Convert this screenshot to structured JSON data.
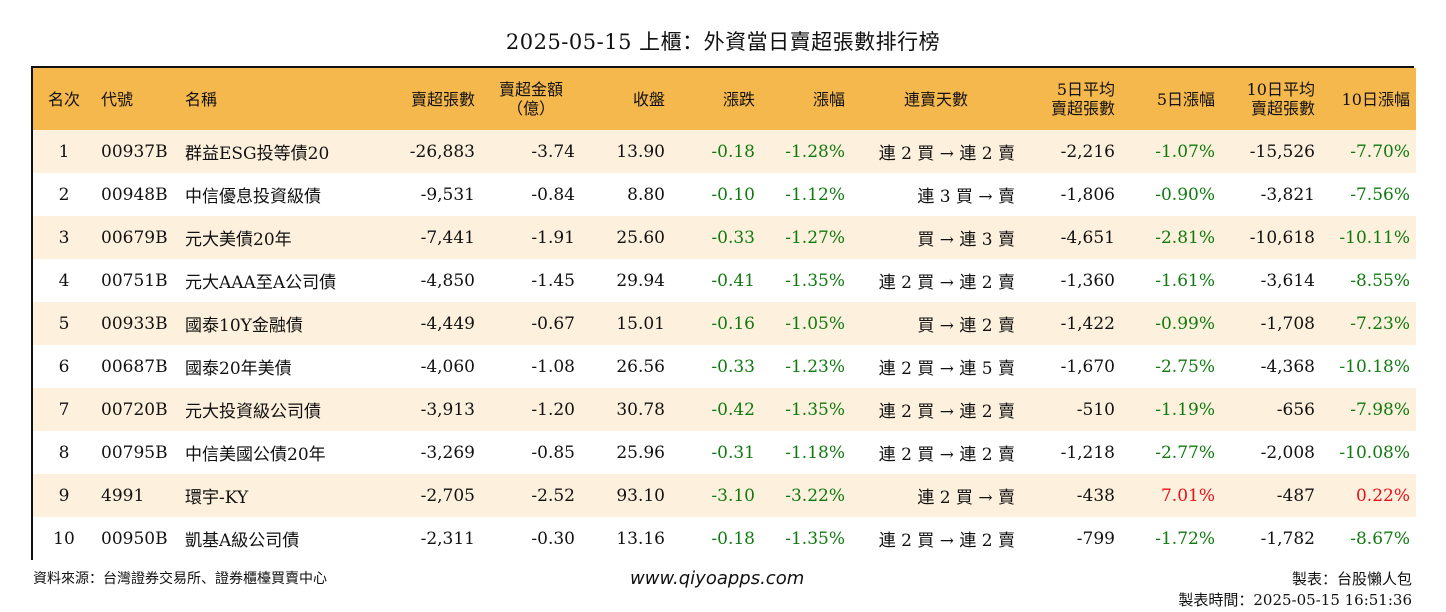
{
  "title": "2025-05-15 上櫃：外資當日賣超張數排行榜",
  "headers": {
    "rank": "名次",
    "code": "代號",
    "name": "名稱",
    "sell_lots": "賣超張數",
    "sell_amount_1": "賣超金額",
    "sell_amount_2": "（億）",
    "close": "收盤",
    "change": "漲跌",
    "change_pct": "漲幅",
    "streak": "連賣天數",
    "avg5_1": "5日平均",
    "avg5_2": "賣超張數",
    "pct5": "5日漲幅",
    "avg10_1": "10日平均",
    "avg10_2": "賣超張數",
    "pct10": "10日漲幅"
  },
  "rows": [
    {
      "rank": "1",
      "code": "00937B",
      "name": "群益ESG投等債20",
      "sell": "-26,883",
      "amount": "-3.74",
      "close": "13.90",
      "chg": "-0.18",
      "chg_pct": "-1.28%",
      "streak": "連 2 買 → 連 2 賣",
      "avg5": "-2,216",
      "pct5": "-1.07%",
      "avg10": "-15,526",
      "pct10": "-7.70%"
    },
    {
      "rank": "2",
      "code": "00948B",
      "name": "中信優息投資級債",
      "sell": "-9,531",
      "amount": "-0.84",
      "close": "8.80",
      "chg": "-0.10",
      "chg_pct": "-1.12%",
      "streak": "連 3 買 → 賣",
      "avg5": "-1,806",
      "pct5": "-0.90%",
      "avg10": "-3,821",
      "pct10": "-7.56%"
    },
    {
      "rank": "3",
      "code": "00679B",
      "name": "元大美債20年",
      "sell": "-7,441",
      "amount": "-1.91",
      "close": "25.60",
      "chg": "-0.33",
      "chg_pct": "-1.27%",
      "streak": "買 → 連 3 賣",
      "avg5": "-4,651",
      "pct5": "-2.81%",
      "avg10": "-10,618",
      "pct10": "-10.11%"
    },
    {
      "rank": "4",
      "code": "00751B",
      "name": "元大AAA至A公司債",
      "sell": "-4,850",
      "amount": "-1.45",
      "close": "29.94",
      "chg": "-0.41",
      "chg_pct": "-1.35%",
      "streak": "連 2 買 → 連 2 賣",
      "avg5": "-1,360",
      "pct5": "-1.61%",
      "avg10": "-3,614",
      "pct10": "-8.55%"
    },
    {
      "rank": "5",
      "code": "00933B",
      "name": "國泰10Y金融債",
      "sell": "-4,449",
      "amount": "-0.67",
      "close": "15.01",
      "chg": "-0.16",
      "chg_pct": "-1.05%",
      "streak": "買 → 連 2 賣",
      "avg5": "-1,422",
      "pct5": "-0.99%",
      "avg10": "-1,708",
      "pct10": "-7.23%"
    },
    {
      "rank": "6",
      "code": "00687B",
      "name": "國泰20年美債",
      "sell": "-4,060",
      "amount": "-1.08",
      "close": "26.56",
      "chg": "-0.33",
      "chg_pct": "-1.23%",
      "streak": "連 2 買 → 連 5 賣",
      "avg5": "-1,670",
      "pct5": "-2.75%",
      "avg10": "-4,368",
      "pct10": "-10.18%"
    },
    {
      "rank": "7",
      "code": "00720B",
      "name": "元大投資級公司債",
      "sell": "-3,913",
      "amount": "-1.20",
      "close": "30.78",
      "chg": "-0.42",
      "chg_pct": "-1.35%",
      "streak": "連 2 買 → 連 2 賣",
      "avg5": "-510",
      "pct5": "-1.19%",
      "avg10": "-656",
      "pct10": "-7.98%"
    },
    {
      "rank": "8",
      "code": "00795B",
      "name": "中信美國公債20年",
      "sell": "-3,269",
      "amount": "-0.85",
      "close": "25.96",
      "chg": "-0.31",
      "chg_pct": "-1.18%",
      "streak": "連 2 買 → 連 2 賣",
      "avg5": "-1,218",
      "pct5": "-2.77%",
      "avg10": "-2,008",
      "pct10": "-10.08%"
    },
    {
      "rank": "9",
      "code": "4991",
      "name": "環宇-KY",
      "sell": "-2,705",
      "amount": "-2.52",
      "close": "93.10",
      "chg": "-3.10",
      "chg_pct": "-3.22%",
      "streak": "連 2 買 → 賣",
      "avg5": "-438",
      "pct5": "7.01%",
      "avg10": "-487",
      "pct10": "0.22%"
    },
    {
      "rank": "10",
      "code": "00950B",
      "name": "凱基A級公司債",
      "sell": "-2,311",
      "amount": "-0.30",
      "close": "13.16",
      "chg": "-0.18",
      "chg_pct": "-1.35%",
      "streak": "連 2 買 → 連 2 賣",
      "avg5": "-799",
      "pct5": "-1.72%",
      "avg10": "-1,782",
      "pct10": "-8.67%"
    }
  ],
  "footer": {
    "source": "資料來源：台灣證券交易所、證券櫃檯買賣中心",
    "website": "www.qiyoapps.com",
    "maker": "製表：台股懶人包",
    "time": "製表時間：2025-05-15 16:51:36"
  },
  "colors": {
    "header_bg": "#f5b84c",
    "stripe_bg": "#fdf0dc",
    "negative_green": "#107a10",
    "positive_red": "#e8101a"
  }
}
